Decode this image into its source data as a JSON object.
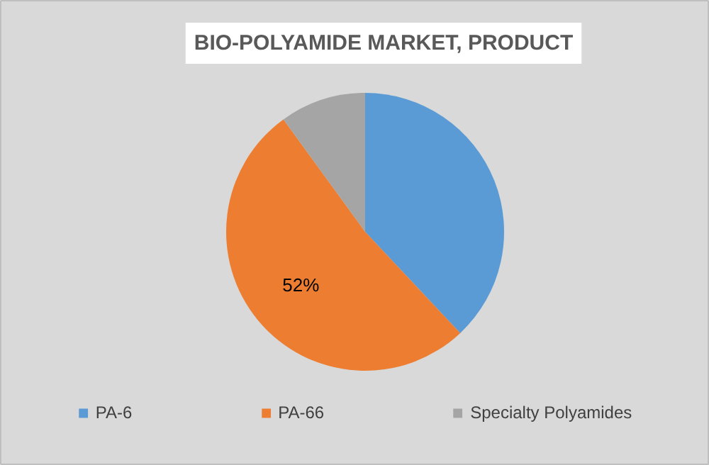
{
  "chart_data": {
    "type": "pie",
    "title": "BIO-POLYAMIDE MARKET, PRODUCT",
    "categories": [
      "PA-6",
      "PA-66",
      "Specialty Polyamides"
    ],
    "values": [
      38,
      52,
      10
    ],
    "colors": [
      "#5b9bd5",
      "#ed7d31",
      "#a5a5a5"
    ],
    "value_labels": [
      null,
      "52%",
      null
    ],
    "legend": "bottom"
  }
}
